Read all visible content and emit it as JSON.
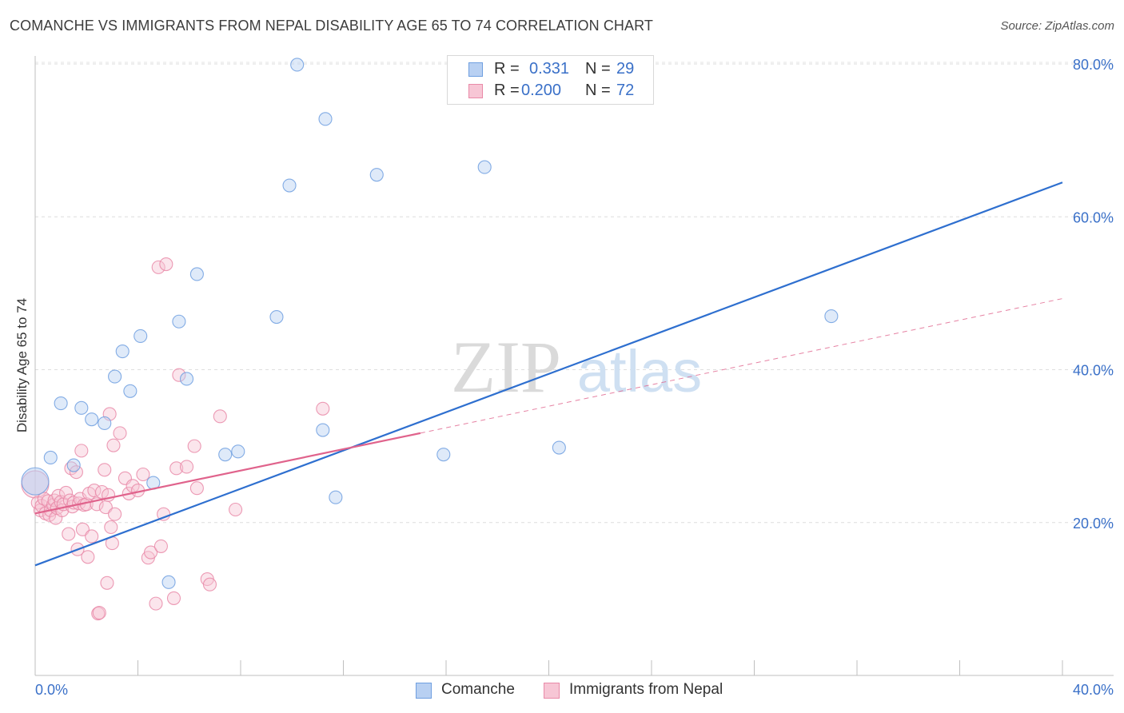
{
  "chart_data": {
    "type": "scatter",
    "title": "COMANCHE VS IMMIGRANTS FROM NEPAL DISABILITY AGE 65 TO 74 CORRELATION CHART",
    "source": "Source: ZipAtlas.com",
    "ylabel": "Disability Age 65 to 74",
    "xlabel": "",
    "xlim": [
      0,
      40
    ],
    "ylim": [
      0,
      80
    ],
    "x_tick_labels": [
      "0.0%",
      "40.0%"
    ],
    "y_ticks": [
      {
        "value": 20,
        "label": "20.0%"
      },
      {
        "value": 40,
        "label": "40.0%"
      },
      {
        "value": 60,
        "label": "60.0%"
      },
      {
        "value": 80,
        "label": "80.0%"
      }
    ],
    "watermark": {
      "zip": "ZIP",
      "atlas": "atlas"
    },
    "stats": [
      {
        "r_label": "R =",
        "r_value": "0.331",
        "n_label": "N =",
        "n_value": "29"
      },
      {
        "r_label": "R =",
        "r_value": "0.200",
        "n_label": "N =",
        "n_value": "72"
      }
    ],
    "series": [
      {
        "name": "Comanche",
        "color": "#6f9fe0",
        "fill": "#b8d0f2",
        "line_color": "#2e6fcf",
        "trend": {
          "x0": 0,
          "y0": 14.4,
          "x1": 40,
          "y1": 64.5,
          "dashed_to": null
        },
        "points": [
          {
            "x": 0.0,
            "y": 25.4,
            "big": true
          },
          {
            "x": 0.6,
            "y": 28.5
          },
          {
            "x": 1.0,
            "y": 35.6
          },
          {
            "x": 1.5,
            "y": 27.5
          },
          {
            "x": 1.8,
            "y": 35.0
          },
          {
            "x": 2.2,
            "y": 33.5
          },
          {
            "x": 2.7,
            "y": 33.0
          },
          {
            "x": 3.1,
            "y": 39.1
          },
          {
            "x": 3.4,
            "y": 42.4
          },
          {
            "x": 3.7,
            "y": 37.2
          },
          {
            "x": 4.1,
            "y": 44.4
          },
          {
            "x": 4.6,
            "y": 25.2
          },
          {
            "x": 5.2,
            "y": 12.2
          },
          {
            "x": 5.6,
            "y": 46.3
          },
          {
            "x": 5.9,
            "y": 38.8
          },
          {
            "x": 6.3,
            "y": 52.5
          },
          {
            "x": 7.4,
            "y": 28.9
          },
          {
            "x": 7.9,
            "y": 29.3
          },
          {
            "x": 9.4,
            "y": 46.9
          },
          {
            "x": 9.9,
            "y": 64.1
          },
          {
            "x": 10.2,
            "y": 79.9
          },
          {
            "x": 11.2,
            "y": 32.1
          },
          {
            "x": 11.3,
            "y": 72.8
          },
          {
            "x": 11.7,
            "y": 23.3
          },
          {
            "x": 13.3,
            "y": 65.5
          },
          {
            "x": 15.9,
            "y": 28.9
          },
          {
            "x": 17.5,
            "y": 66.5
          },
          {
            "x": 20.4,
            "y": 29.8
          },
          {
            "x": 31.0,
            "y": 47.0
          }
        ]
      },
      {
        "name": "Immigrants from Nepal",
        "color": "#e98aa8",
        "fill": "#f7c6d5",
        "line_color": "#e0638c",
        "trend": {
          "x0": 0,
          "y0": 21.2,
          "x1": 15.0,
          "y1": 31.7,
          "dashed_to": {
            "x": 40,
            "y": 49.3
          }
        },
        "points": [
          {
            "x": 0.0,
            "y": 25.0,
            "big": true
          },
          {
            "x": 0.1,
            "y": 22.6
          },
          {
            "x": 0.2,
            "y": 21.6
          },
          {
            "x": 0.25,
            "y": 22.2
          },
          {
            "x": 0.35,
            "y": 23.1
          },
          {
            "x": 0.4,
            "y": 21.2
          },
          {
            "x": 0.5,
            "y": 22.8
          },
          {
            "x": 0.55,
            "y": 21.0
          },
          {
            "x": 0.6,
            "y": 21.6
          },
          {
            "x": 0.7,
            "y": 22.3
          },
          {
            "x": 0.75,
            "y": 22.9
          },
          {
            "x": 0.8,
            "y": 20.6
          },
          {
            "x": 0.85,
            "y": 21.9
          },
          {
            "x": 0.9,
            "y": 23.5
          },
          {
            "x": 1.0,
            "y": 22.7
          },
          {
            "x": 1.05,
            "y": 21.6
          },
          {
            "x": 1.1,
            "y": 22.4
          },
          {
            "x": 1.2,
            "y": 23.9
          },
          {
            "x": 1.3,
            "y": 18.5
          },
          {
            "x": 1.35,
            "y": 22.9
          },
          {
            "x": 1.4,
            "y": 27.1
          },
          {
            "x": 1.45,
            "y": 22.1
          },
          {
            "x": 1.5,
            "y": 22.6
          },
          {
            "x": 1.6,
            "y": 26.6
          },
          {
            "x": 1.65,
            "y": 16.5
          },
          {
            "x": 1.7,
            "y": 22.5
          },
          {
            "x": 1.75,
            "y": 23.1
          },
          {
            "x": 1.8,
            "y": 29.4
          },
          {
            "x": 1.85,
            "y": 19.1
          },
          {
            "x": 1.9,
            "y": 22.3
          },
          {
            "x": 2.0,
            "y": 22.4
          },
          {
            "x": 2.05,
            "y": 15.5
          },
          {
            "x": 2.1,
            "y": 23.8
          },
          {
            "x": 2.2,
            "y": 18.2
          },
          {
            "x": 2.3,
            "y": 24.2
          },
          {
            "x": 2.4,
            "y": 22.4
          },
          {
            "x": 2.45,
            "y": 8.1
          },
          {
            "x": 2.5,
            "y": 8.2
          },
          {
            "x": 2.6,
            "y": 24.0
          },
          {
            "x": 2.7,
            "y": 26.9
          },
          {
            "x": 2.75,
            "y": 22.0
          },
          {
            "x": 2.8,
            "y": 12.1
          },
          {
            "x": 2.85,
            "y": 23.6
          },
          {
            "x": 2.9,
            "y": 34.2
          },
          {
            "x": 2.95,
            "y": 19.4
          },
          {
            "x": 3.0,
            "y": 17.3
          },
          {
            "x": 3.05,
            "y": 30.1
          },
          {
            "x": 3.1,
            "y": 21.1
          },
          {
            "x": 3.3,
            "y": 31.7
          },
          {
            "x": 3.5,
            "y": 25.8
          },
          {
            "x": 3.65,
            "y": 23.8
          },
          {
            "x": 3.8,
            "y": 24.8
          },
          {
            "x": 4.0,
            "y": 24.2
          },
          {
            "x": 4.2,
            "y": 26.3
          },
          {
            "x": 4.4,
            "y": 15.4
          },
          {
            "x": 4.5,
            "y": 16.1
          },
          {
            "x": 4.7,
            "y": 9.4
          },
          {
            "x": 4.8,
            "y": 53.4
          },
          {
            "x": 4.9,
            "y": 16.9
          },
          {
            "x": 5.0,
            "y": 21.1
          },
          {
            "x": 5.1,
            "y": 53.8
          },
          {
            "x": 5.4,
            "y": 10.1
          },
          {
            "x": 5.5,
            "y": 27.1
          },
          {
            "x": 5.6,
            "y": 39.3
          },
          {
            "x": 5.9,
            "y": 27.3
          },
          {
            "x": 6.2,
            "y": 30.0
          },
          {
            "x": 6.3,
            "y": 24.5
          },
          {
            "x": 6.7,
            "y": 12.6
          },
          {
            "x": 6.8,
            "y": 11.9
          },
          {
            "x": 7.2,
            "y": 33.9
          },
          {
            "x": 7.8,
            "y": 21.7
          },
          {
            "x": 11.2,
            "y": 34.9
          }
        ]
      }
    ]
  }
}
